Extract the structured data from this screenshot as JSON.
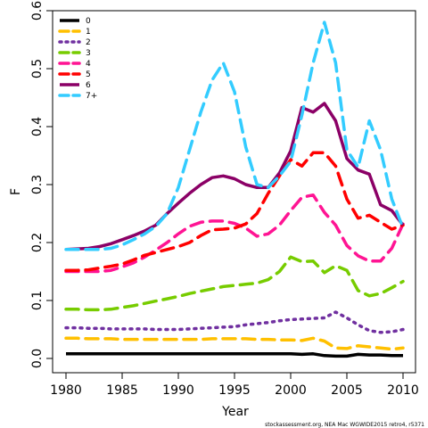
{
  "chart_data": {
    "type": "line",
    "title": "",
    "xlabel": "Year",
    "ylabel": "F",
    "xlim": [
      1980,
      2010
    ],
    "ylim": [
      0.0,
      0.6
    ],
    "xticks": [
      1980,
      1985,
      1990,
      1995,
      2000,
      2005,
      2010
    ],
    "yticks": [
      0.0,
      0.1,
      0.2,
      0.3,
      0.4,
      0.5,
      0.6
    ],
    "x": [
      1980,
      1981,
      1982,
      1983,
      1984,
      1985,
      1986,
      1987,
      1988,
      1989,
      1990,
      1991,
      1992,
      1993,
      1994,
      1995,
      1996,
      1997,
      1998,
      1999,
      2000,
      2001,
      2002,
      2003,
      2004,
      2005,
      2006,
      2007,
      2008,
      2009,
      2010
    ],
    "grid": false,
    "legend_position": "top-left",
    "series": [
      {
        "name": "0",
        "color": "#000000",
        "dash": "solid",
        "values": [
          0.008,
          0.008,
          0.008,
          0.008,
          0.008,
          0.008,
          0.008,
          0.008,
          0.008,
          0.008,
          0.008,
          0.008,
          0.008,
          0.008,
          0.008,
          0.008,
          0.008,
          0.008,
          0.008,
          0.008,
          0.008,
          0.007,
          0.008,
          0.005,
          0.004,
          0.004,
          0.007,
          0.006,
          0.006,
          0.005,
          0.005
        ]
      },
      {
        "name": "1",
        "color": "#FFC000",
        "dash": "dashed",
        "values": [
          0.035,
          0.035,
          0.034,
          0.034,
          0.034,
          0.033,
          0.033,
          0.033,
          0.033,
          0.033,
          0.033,
          0.033,
          0.033,
          0.034,
          0.034,
          0.034,
          0.034,
          0.033,
          0.033,
          0.032,
          0.032,
          0.031,
          0.035,
          0.03,
          0.018,
          0.017,
          0.022,
          0.02,
          0.018,
          0.016,
          0.018
        ]
      },
      {
        "name": "2",
        "color": "#7030A0",
        "dash": "dotted",
        "values": [
          0.053,
          0.053,
          0.052,
          0.052,
          0.051,
          0.051,
          0.051,
          0.051,
          0.05,
          0.05,
          0.05,
          0.051,
          0.052,
          0.053,
          0.054,
          0.055,
          0.058,
          0.06,
          0.062,
          0.065,
          0.067,
          0.068,
          0.069,
          0.07,
          0.08,
          0.07,
          0.058,
          0.048,
          0.045,
          0.046,
          0.05
        ]
      },
      {
        "name": "3",
        "color": "#77CC00",
        "dash": "dashed",
        "values": [
          0.085,
          0.085,
          0.084,
          0.084,
          0.085,
          0.088,
          0.091,
          0.095,
          0.099,
          0.103,
          0.107,
          0.112,
          0.116,
          0.12,
          0.124,
          0.126,
          0.128,
          0.13,
          0.136,
          0.15,
          0.175,
          0.167,
          0.168,
          0.148,
          0.16,
          0.152,
          0.117,
          0.108,
          0.112,
          0.122,
          0.133
        ]
      },
      {
        "name": "4",
        "color": "#FF1493",
        "dash": "dashed",
        "values": [
          0.15,
          0.15,
          0.15,
          0.15,
          0.152,
          0.158,
          0.165,
          0.175,
          0.187,
          0.2,
          0.215,
          0.228,
          0.235,
          0.237,
          0.237,
          0.233,
          0.225,
          0.211,
          0.215,
          0.23,
          0.255,
          0.278,
          0.282,
          0.252,
          0.23,
          0.195,
          0.177,
          0.168,
          0.168,
          0.19,
          0.232
        ]
      },
      {
        "name": "5",
        "color": "#FF0000",
        "dash": "dashed",
        "values": [
          0.152,
          0.152,
          0.153,
          0.156,
          0.159,
          0.163,
          0.17,
          0.178,
          0.183,
          0.188,
          0.193,
          0.2,
          0.212,
          0.222,
          0.223,
          0.225,
          0.232,
          0.25,
          0.285,
          0.315,
          0.343,
          0.332,
          0.355,
          0.355,
          0.332,
          0.275,
          0.242,
          0.247,
          0.235,
          0.223,
          0.23
        ]
      },
      {
        "name": "6",
        "color": "#8B0066",
        "dash": "solid",
        "values": [
          0.188,
          0.189,
          0.19,
          0.193,
          0.198,
          0.205,
          0.212,
          0.22,
          0.23,
          0.25,
          0.268,
          0.285,
          0.3,
          0.312,
          0.315,
          0.31,
          0.3,
          0.295,
          0.295,
          0.32,
          0.358,
          0.433,
          0.425,
          0.44,
          0.41,
          0.345,
          0.325,
          0.318,
          0.265,
          0.255,
          0.23
        ]
      },
      {
        "name": "7+",
        "color": "#33CCFF",
        "dash": "dashed",
        "values": [
          0.188,
          0.188,
          0.188,
          0.188,
          0.19,
          0.196,
          0.205,
          0.215,
          0.228,
          0.25,
          0.295,
          0.36,
          0.425,
          0.48,
          0.51,
          0.46,
          0.365,
          0.3,
          0.295,
          0.315,
          0.34,
          0.42,
          0.51,
          0.58,
          0.51,
          0.36,
          0.33,
          0.41,
          0.36,
          0.275,
          0.225
        ]
      }
    ],
    "footer_note": "stockassessment.org, NEA Mac WGWIDE2015 retro4, r5371"
  }
}
